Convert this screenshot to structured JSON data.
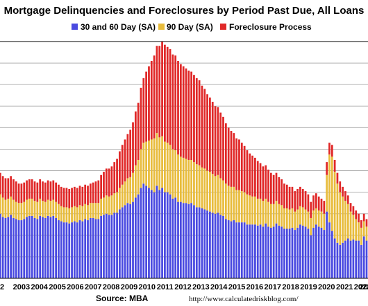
{
  "chart_data": {
    "type": "bar",
    "stacked": true,
    "title": "Mortgage Delinquencies and Foreclosures by Period Past Due, All Loans",
    "source": "Source: MBA",
    "url": "http://www.calculatedriskblog.com/",
    "ylim": [
      0,
      11
    ],
    "grid": true,
    "legend_position": "top",
    "x_tick_labels": [
      "2",
      "2003",
      "2004",
      "2005",
      "2006",
      "2007",
      "2008",
      "2009",
      "2010",
      "2011",
      "2012",
      "2013",
      "2014",
      "2015",
      "2016",
      "2017",
      "2018",
      "2019",
      "2020",
      "2021",
      "2022",
      "20"
    ],
    "colors": {
      "s1": "#4a4ae0",
      "s2": "#e8bc3c",
      "s3": "#e02828",
      "grid": "#b0b0b0",
      "plot_border": "#000000"
    },
    "series": [
      {
        "name": "30 and 60 Day (SA)",
        "values": [
          3.05,
          3.0,
          2.85,
          2.8,
          2.85,
          2.95,
          2.8,
          2.75,
          2.7,
          2.7,
          2.75,
          2.85,
          2.9,
          2.9,
          2.8,
          2.75,
          2.9,
          2.85,
          2.8,
          2.9,
          2.85,
          2.9,
          2.8,
          2.7,
          2.65,
          2.6,
          2.6,
          2.55,
          2.6,
          2.65,
          2.6,
          2.7,
          2.65,
          2.75,
          2.7,
          2.8,
          2.8,
          2.75,
          2.75,
          2.9,
          2.95,
          3.0,
          2.95,
          2.95,
          3.05,
          3.05,
          3.2,
          3.3,
          3.4,
          3.5,
          3.45,
          3.55,
          3.75,
          3.9,
          4.2,
          4.4,
          4.3,
          4.2,
          4.1,
          4.0,
          4.3,
          4.1,
          4.2,
          4.0,
          4.0,
          3.9,
          3.7,
          3.75,
          3.55,
          3.55,
          3.5,
          3.5,
          3.45,
          3.5,
          3.4,
          3.3,
          3.3,
          3.25,
          3.2,
          3.15,
          3.1,
          3.05,
          3.0,
          3.05,
          2.95,
          2.9,
          2.75,
          2.7,
          2.65,
          2.7,
          2.6,
          2.6,
          2.6,
          2.6,
          2.5,
          2.5,
          2.5,
          2.5,
          2.45,
          2.5,
          2.4,
          2.55,
          2.4,
          2.35,
          2.4,
          2.55,
          2.45,
          2.4,
          2.3,
          2.3,
          2.3,
          2.35,
          2.25,
          2.35,
          2.5,
          2.45,
          2.4,
          2.3,
          2.0,
          2.35,
          2.5,
          2.4,
          2.35,
          2.25,
          3.1,
          2.6,
          2.2,
          1.85,
          1.65,
          1.55,
          1.65,
          1.75,
          1.85,
          1.75,
          1.8,
          1.75,
          1.75,
          1.55,
          1.95,
          1.75
        ]
      },
      {
        "name": "90 Day (SA)",
        "values": [
          0.9,
          0.9,
          0.9,
          0.85,
          0.85,
          0.85,
          0.85,
          0.8,
          0.8,
          0.8,
          0.8,
          0.8,
          0.8,
          0.8,
          0.8,
          0.8,
          0.8,
          0.75,
          0.75,
          0.75,
          0.75,
          0.75,
          0.75,
          0.75,
          0.7,
          0.7,
          0.7,
          0.7,
          0.7,
          0.7,
          0.7,
          0.7,
          0.7,
          0.7,
          0.7,
          0.7,
          0.7,
          0.75,
          0.75,
          0.8,
          0.8,
          0.85,
          0.85,
          0.9,
          0.9,
          0.95,
          1.0,
          1.05,
          1.1,
          1.15,
          1.25,
          1.35,
          1.5,
          1.6,
          1.8,
          1.9,
          2.05,
          2.2,
          2.35,
          2.5,
          2.45,
          2.45,
          2.4,
          2.35,
          2.3,
          2.3,
          2.3,
          2.2,
          2.2,
          2.1,
          2.1,
          2.05,
          2.05,
          2.0,
          2.0,
          2.0,
          1.95,
          1.9,
          1.9,
          1.85,
          1.85,
          1.8,
          1.75,
          1.75,
          1.7,
          1.65,
          1.65,
          1.6,
          1.6,
          1.55,
          1.5,
          1.5,
          1.45,
          1.4,
          1.4,
          1.35,
          1.3,
          1.3,
          1.25,
          1.2,
          1.2,
          1.15,
          1.15,
          1.1,
          1.05,
          1.05,
          1.0,
          1.0,
          0.95,
          0.95,
          0.9,
          0.9,
          0.85,
          0.85,
          0.85,
          0.85,
          0.8,
          0.8,
          0.8,
          0.8,
          0.75,
          0.75,
          0.75,
          0.75,
          1.7,
          3.15,
          3.45,
          3.1,
          2.75,
          2.45,
          2.15,
          1.85,
          1.6,
          1.35,
          1.15,
          1.0,
          0.85,
          0.8,
          0.7,
          0.65
        ]
      },
      {
        "name": "Foreclosure Process",
        "values": [
          1.0,
          1.0,
          1.0,
          1.0,
          0.95,
          0.95,
          0.95,
          0.95,
          0.9,
          0.9,
          0.9,
          0.9,
          0.9,
          0.9,
          0.9,
          0.9,
          0.9,
          0.9,
          0.9,
          0.9,
          0.9,
          0.9,
          0.9,
          0.9,
          0.9,
          0.9,
          0.9,
          0.9,
          0.9,
          0.9,
          0.9,
          0.9,
          0.9,
          0.9,
          0.9,
          0.9,
          0.95,
          1.0,
          1.05,
          1.1,
          1.2,
          1.25,
          1.3,
          1.35,
          1.45,
          1.55,
          1.7,
          1.85,
          1.95,
          2.05,
          2.2,
          2.35,
          2.5,
          2.65,
          2.85,
          3.0,
          3.25,
          3.45,
          3.65,
          3.85,
          4.05,
          4.25,
          4.4,
          4.5,
          4.45,
          4.45,
          4.4,
          4.4,
          4.35,
          4.3,
          4.25,
          4.2,
          4.15,
          4.1,
          4.05,
          4.0,
          3.95,
          3.8,
          3.7,
          3.55,
          3.45,
          3.35,
          3.25,
          3.15,
          3.05,
          2.95,
          2.8,
          2.7,
          2.6,
          2.5,
          2.4,
          2.35,
          2.25,
          2.15,
          2.05,
          1.95,
          1.9,
          1.8,
          1.75,
          1.65,
          1.6,
          1.55,
          1.5,
          1.45,
          1.35,
          1.3,
          1.25,
          1.2,
          1.15,
          1.1,
          1.05,
          1.0,
          0.95,
          0.95,
          0.9,
          0.85,
          0.85,
          0.8,
          0.75,
          0.7,
          0.7,
          0.65,
          0.6,
          0.6,
          0.6,
          0.55,
          0.55,
          0.55,
          0.5,
          0.5,
          0.45,
          0.45,
          0.4,
          0.4,
          0.4,
          0.4,
          0.4,
          0.35,
          0.35,
          0.35
        ]
      }
    ]
  }
}
